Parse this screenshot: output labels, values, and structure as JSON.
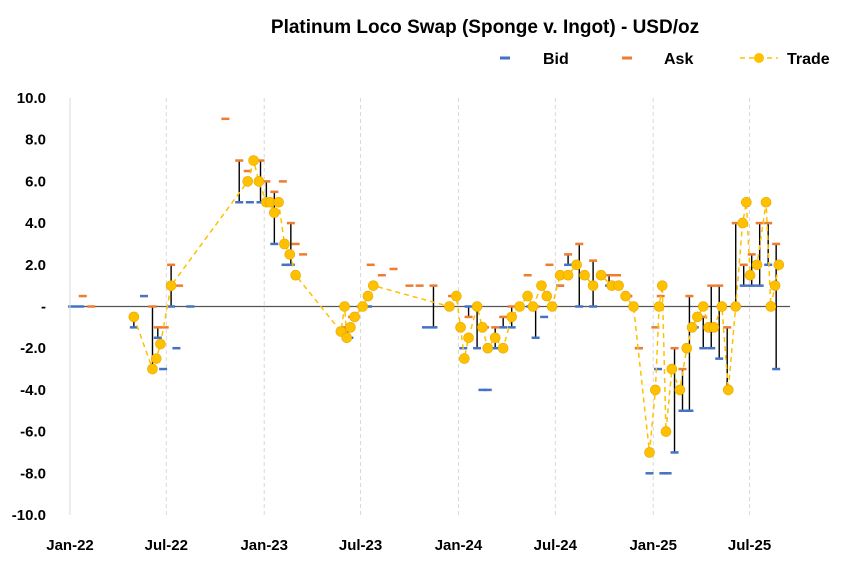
{
  "chart_data": {
    "type": "line",
    "title": "Platinum Loco Swap (Sponge v. Ingot) - USD/oz",
    "ylim": [
      -10,
      10
    ],
    "y_ticks": [
      "10.0",
      "8.0",
      "6.0",
      "4.0",
      "2.0",
      "-",
      "-2.0",
      "-4.0",
      "-6.0",
      "-8.0",
      "-10.0"
    ],
    "y_tick_values": [
      10,
      8,
      6,
      4,
      2,
      0,
      -2,
      -4,
      -6,
      -8,
      -10
    ],
    "x_ticks": [
      "Jan-22",
      "Jul-22",
      "Jan-23",
      "Jul-23",
      "Jan-24",
      "Jul-24",
      "Jan-25",
      "Jul-25"
    ],
    "x_tick_dates": [
      "2022-01-01",
      "2022-07-01",
      "2023-01-01",
      "2023-07-01",
      "2024-01-01",
      "2024-07-01",
      "2025-01-01",
      "2025-07-01"
    ],
    "xlim": [
      "2022-01-01",
      "2025-09-15"
    ],
    "grid": "vertical dashed",
    "legend_position": "top-right",
    "legend": [
      {
        "label": "Bid",
        "color": "#4472C4"
      },
      {
        "label": "Ask",
        "color": "#ED7D31"
      },
      {
        "label": "Trade",
        "color": "#FFC000"
      }
    ],
    "series": [
      {
        "name": "Bid",
        "color": "#4472C4",
        "points": [
          {
            "x": "2022-01-05",
            "y": 0
          },
          {
            "x": "2022-01-20",
            "y": 0
          },
          {
            "x": "2022-05-01",
            "y": -1
          },
          {
            "x": "2022-05-20",
            "y": 0.5
          },
          {
            "x": "2022-06-05",
            "y": -3
          },
          {
            "x": "2022-06-15",
            "y": -1.5
          },
          {
            "x": "2022-06-25",
            "y": -3
          },
          {
            "x": "2022-07-10",
            "y": 0
          },
          {
            "x": "2022-07-20",
            "y": -2
          },
          {
            "x": "2022-08-15",
            "y": 0
          },
          {
            "x": "2022-11-15",
            "y": 5
          },
          {
            "x": "2022-12-05",
            "y": 5
          },
          {
            "x": "2022-12-25",
            "y": 5
          },
          {
            "x": "2023-01-05",
            "y": 5
          },
          {
            "x": "2023-01-20",
            "y": 3
          },
          {
            "x": "2023-02-10",
            "y": 2
          },
          {
            "x": "2023-02-20",
            "y": 2
          },
          {
            "x": "2023-06-01",
            "y": -1.2
          },
          {
            "x": "2023-06-10",
            "y": -1.5
          },
          {
            "x": "2023-07-15",
            "y": 0
          },
          {
            "x": "2023-07-25",
            "y": 1
          },
          {
            "x": "2023-11-01",
            "y": -1
          },
          {
            "x": "2023-11-15",
            "y": -1
          },
          {
            "x": "2023-12-15",
            "y": 0
          },
          {
            "x": "2024-01-10",
            "y": -2
          },
          {
            "x": "2024-01-20",
            "y": 0
          },
          {
            "x": "2024-02-05",
            "y": -2
          },
          {
            "x": "2024-02-15",
            "y": -4
          },
          {
            "x": "2024-02-25",
            "y": -4
          },
          {
            "x": "2024-03-10",
            "y": -2
          },
          {
            "x": "2024-03-25",
            "y": -1
          },
          {
            "x": "2024-04-10",
            "y": -1
          },
          {
            "x": "2024-04-25",
            "y": 0
          },
          {
            "x": "2024-05-15",
            "y": 0
          },
          {
            "x": "2024-05-25",
            "y": -1.5
          },
          {
            "x": "2024-06-10",
            "y": -0.5
          },
          {
            "x": "2024-06-25",
            "y": 0
          },
          {
            "x": "2024-07-10",
            "y": 1
          },
          {
            "x": "2024-07-25",
            "y": 2
          },
          {
            "x": "2024-08-15",
            "y": 0
          },
          {
            "x": "2024-09-10",
            "y": 0
          },
          {
            "x": "2024-10-10",
            "y": 1
          },
          {
            "x": "2024-11-15",
            "y": 0.5
          },
          {
            "x": "2024-12-05",
            "y": -2
          },
          {
            "x": "2024-12-25",
            "y": -8
          },
          {
            "x": "2025-01-10",
            "y": -3
          },
          {
            "x": "2025-01-20",
            "y": -8
          },
          {
            "x": "2025-01-28",
            "y": -8
          },
          {
            "x": "2025-02-10",
            "y": -7
          },
          {
            "x": "2025-02-25",
            "y": -5
          },
          {
            "x": "2025-03-10",
            "y": -5
          },
          {
            "x": "2025-03-20",
            "y": -1
          },
          {
            "x": "2025-04-05",
            "y": -2
          },
          {
            "x": "2025-04-20",
            "y": -2
          },
          {
            "x": "2025-05-05",
            "y": -2.5
          },
          {
            "x": "2025-05-20",
            "y": -4
          },
          {
            "x": "2025-06-05",
            "y": 0
          },
          {
            "x": "2025-06-20",
            "y": 1
          },
          {
            "x": "2025-07-05",
            "y": 1
          },
          {
            "x": "2025-07-20",
            "y": 1
          },
          {
            "x": "2025-08-05",
            "y": 2
          },
          {
            "x": "2025-08-20",
            "y": -3
          }
        ]
      },
      {
        "name": "Ask",
        "color": "#ED7D31",
        "points": [
          {
            "x": "2022-01-25",
            "y": 0.5
          },
          {
            "x": "2022-02-10",
            "y": 0
          },
          {
            "x": "2022-05-01",
            "y": -0.5
          },
          {
            "x": "2022-06-05",
            "y": 0
          },
          {
            "x": "2022-06-15",
            "y": -1
          },
          {
            "x": "2022-06-28",
            "y": -1
          },
          {
            "x": "2022-07-10",
            "y": 2
          },
          {
            "x": "2022-07-25",
            "y": 1
          },
          {
            "x": "2022-10-20",
            "y": 9
          },
          {
            "x": "2022-11-15",
            "y": 7
          },
          {
            "x": "2022-12-01",
            "y": 6.5
          },
          {
            "x": "2022-12-25",
            "y": 7
          },
          {
            "x": "2023-01-05",
            "y": 6
          },
          {
            "x": "2023-01-20",
            "y": 5.5
          },
          {
            "x": "2023-02-05",
            "y": 6
          },
          {
            "x": "2023-02-20",
            "y": 4
          },
          {
            "x": "2023-03-01",
            "y": 3
          },
          {
            "x": "2023-03-15",
            "y": 2.5
          },
          {
            "x": "2023-06-01",
            "y": -1
          },
          {
            "x": "2023-06-15",
            "y": -0.5
          },
          {
            "x": "2023-07-01",
            "y": 0
          },
          {
            "x": "2023-07-20",
            "y": 2
          },
          {
            "x": "2023-08-10",
            "y": 1.5
          },
          {
            "x": "2023-09-01",
            "y": 1.8
          },
          {
            "x": "2023-10-01",
            "y": 1
          },
          {
            "x": "2023-10-20",
            "y": 1
          },
          {
            "x": "2023-11-15",
            "y": 1
          },
          {
            "x": "2023-12-20",
            "y": 0.5
          },
          {
            "x": "2024-01-05",
            "y": -1
          },
          {
            "x": "2024-01-20",
            "y": -0.5
          },
          {
            "x": "2024-02-05",
            "y": 0
          },
          {
            "x": "2024-02-20",
            "y": -1
          },
          {
            "x": "2024-03-10",
            "y": -1
          },
          {
            "x": "2024-03-25",
            "y": -0.5
          },
          {
            "x": "2024-04-10",
            "y": 0
          },
          {
            "x": "2024-05-10",
            "y": 1.5
          },
          {
            "x": "2024-05-25",
            "y": 0
          },
          {
            "x": "2024-06-20",
            "y": 2
          },
          {
            "x": "2024-07-10",
            "y": 1
          },
          {
            "x": "2024-07-25",
            "y": 2.5
          },
          {
            "x": "2024-08-15",
            "y": 3
          },
          {
            "x": "2024-09-10",
            "y": 2.2
          },
          {
            "x": "2024-10-10",
            "y": 1.5
          },
          {
            "x": "2024-10-25",
            "y": 1.5
          },
          {
            "x": "2024-11-15",
            "y": 0.5
          },
          {
            "x": "2024-12-05",
            "y": -2
          },
          {
            "x": "2025-01-05",
            "y": -1
          },
          {
            "x": "2025-01-15",
            "y": 0.5
          },
          {
            "x": "2025-02-10",
            "y": -2
          },
          {
            "x": "2025-02-25",
            "y": -3
          },
          {
            "x": "2025-03-10",
            "y": 0.5
          },
          {
            "x": "2025-04-05",
            "y": -0.5
          },
          {
            "x": "2025-04-20",
            "y": 1
          },
          {
            "x": "2025-05-05",
            "y": 1
          },
          {
            "x": "2025-05-20",
            "y": -1
          },
          {
            "x": "2025-06-05",
            "y": 4
          },
          {
            "x": "2025-06-20",
            "y": 2
          },
          {
            "x": "2025-07-05",
            "y": 2.5
          },
          {
            "x": "2025-07-20",
            "y": 4
          },
          {
            "x": "2025-08-05",
            "y": 4
          },
          {
            "x": "2025-08-20",
            "y": 3
          }
        ]
      },
      {
        "name": "Trade",
        "color": "#FFC000",
        "points": [
          {
            "x": "2022-05-01",
            "y": -0.5
          },
          {
            "x": "2022-06-05",
            "y": -3
          },
          {
            "x": "2022-06-12",
            "y": -2.5
          },
          {
            "x": "2022-06-20",
            "y": -1.8
          },
          {
            "x": "2022-07-10",
            "y": 1
          },
          {
            "x": "2022-12-01",
            "y": 6
          },
          {
            "x": "2022-12-12",
            "y": 7
          },
          {
            "x": "2022-12-22",
            "y": 6
          },
          {
            "x": "2023-01-05",
            "y": 5
          },
          {
            "x": "2023-01-12",
            "y": 5
          },
          {
            "x": "2023-01-20",
            "y": 4.5
          },
          {
            "x": "2023-01-28",
            "y": 5
          },
          {
            "x": "2023-02-08",
            "y": 3
          },
          {
            "x": "2023-02-18",
            "y": 2.5
          },
          {
            "x": "2023-03-01",
            "y": 1.5
          },
          {
            "x": "2023-05-25",
            "y": -1.2
          },
          {
            "x": "2023-06-01",
            "y": 0
          },
          {
            "x": "2023-06-05",
            "y": -1.5
          },
          {
            "x": "2023-06-12",
            "y": -1
          },
          {
            "x": "2023-06-20",
            "y": -0.5
          },
          {
            "x": "2023-07-05",
            "y": 0
          },
          {
            "x": "2023-07-15",
            "y": 0.5
          },
          {
            "x": "2023-07-25",
            "y": 1
          },
          {
            "x": "2023-12-15",
            "y": 0
          },
          {
            "x": "2023-12-28",
            "y": 0.5
          },
          {
            "x": "2024-01-05",
            "y": -1
          },
          {
            "x": "2024-01-12",
            "y": -2.5
          },
          {
            "x": "2024-01-20",
            "y": -1.5
          },
          {
            "x": "2024-02-05",
            "y": 0
          },
          {
            "x": "2024-02-15",
            "y": -1
          },
          {
            "x": "2024-02-25",
            "y": -2
          },
          {
            "x": "2024-03-10",
            "y": -1.5
          },
          {
            "x": "2024-03-25",
            "y": -2
          },
          {
            "x": "2024-04-10",
            "y": -0.5
          },
          {
            "x": "2024-04-25",
            "y": 0
          },
          {
            "x": "2024-05-10",
            "y": 0.5
          },
          {
            "x": "2024-05-20",
            "y": 0
          },
          {
            "x": "2024-06-05",
            "y": 1
          },
          {
            "x": "2024-06-15",
            "y": 0.5
          },
          {
            "x": "2024-06-25",
            "y": 0
          },
          {
            "x": "2024-07-10",
            "y": 1.5
          },
          {
            "x": "2024-07-25",
            "y": 1.5
          },
          {
            "x": "2024-08-10",
            "y": 2
          },
          {
            "x": "2024-08-25",
            "y": 1.5
          },
          {
            "x": "2024-09-10",
            "y": 1
          },
          {
            "x": "2024-09-25",
            "y": 1.5
          },
          {
            "x": "2024-10-15",
            "y": 1
          },
          {
            "x": "2024-10-28",
            "y": 1
          },
          {
            "x": "2024-11-10",
            "y": 0.5
          },
          {
            "x": "2024-11-25",
            "y": 0
          },
          {
            "x": "2024-12-25",
            "y": -7
          },
          {
            "x": "2025-01-05",
            "y": -4
          },
          {
            "x": "2025-01-12",
            "y": 0
          },
          {
            "x": "2025-01-18",
            "y": 1
          },
          {
            "x": "2025-01-25",
            "y": -6
          },
          {
            "x": "2025-02-05",
            "y": -3
          },
          {
            "x": "2025-02-20",
            "y": -4
          },
          {
            "x": "2025-03-05",
            "y": -2
          },
          {
            "x": "2025-03-15",
            "y": -1
          },
          {
            "x": "2025-03-25",
            "y": -0.5
          },
          {
            "x": "2025-04-05",
            "y": 0
          },
          {
            "x": "2025-04-15",
            "y": -1
          },
          {
            "x": "2025-04-25",
            "y": -1
          },
          {
            "x": "2025-05-10",
            "y": 0
          },
          {
            "x": "2025-05-22",
            "y": -4
          },
          {
            "x": "2025-06-05",
            "y": 0
          },
          {
            "x": "2025-06-18",
            "y": 4
          },
          {
            "x": "2025-06-25",
            "y": 5
          },
          {
            "x": "2025-07-02",
            "y": 1.5
          },
          {
            "x": "2025-07-15",
            "y": 2
          },
          {
            "x": "2025-08-01",
            "y": 5
          },
          {
            "x": "2025-08-10",
            "y": 0
          },
          {
            "x": "2025-08-18",
            "y": 1
          },
          {
            "x": "2025-08-25",
            "y": 2
          }
        ]
      }
    ]
  }
}
